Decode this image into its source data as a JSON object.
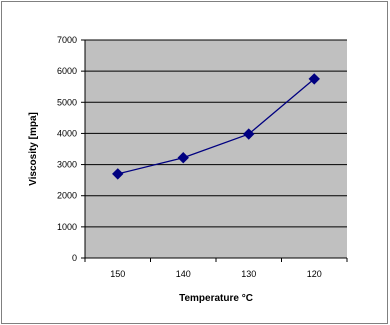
{
  "chart_data": {
    "type": "line",
    "title": "",
    "xlabel": "Temperature °C",
    "ylabel": "Viscosity [mpa]",
    "categories": [
      "150",
      "140",
      "130",
      "120"
    ],
    "series": [
      {
        "values": [
          2700,
          3220,
          3980,
          5750
        ]
      }
    ],
    "ylim": [
      0,
      7000
    ],
    "yticks": [
      0,
      1000,
      2000,
      3000,
      4000,
      5000,
      6000,
      7000
    ],
    "grid": "horizontal",
    "legend": "none",
    "colors": {
      "plot_background": "#c0c0c0",
      "series": "#000080",
      "gridline": "#000000",
      "border": "#808080"
    }
  }
}
